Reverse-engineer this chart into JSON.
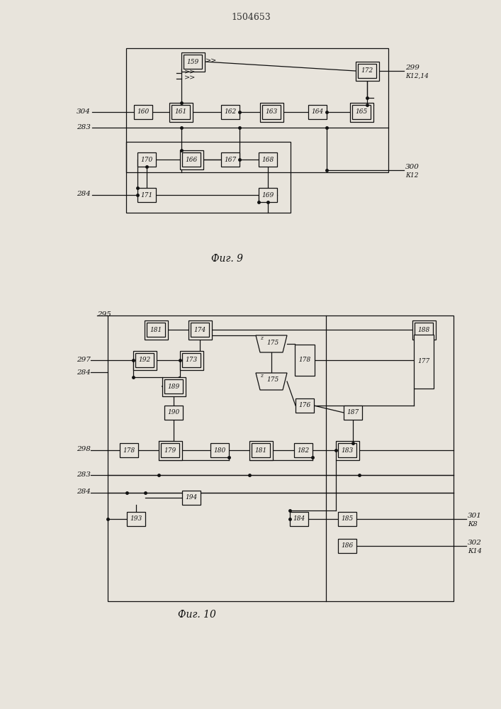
{
  "title": "1504653",
  "fig9_label": "Фиг. 9",
  "fig10_label": "Фиг. 10",
  "bg_color": "#e8e4dc",
  "line_color": "#111111",
  "box_color": "#e8e4dc",
  "box_edge": "#111111"
}
